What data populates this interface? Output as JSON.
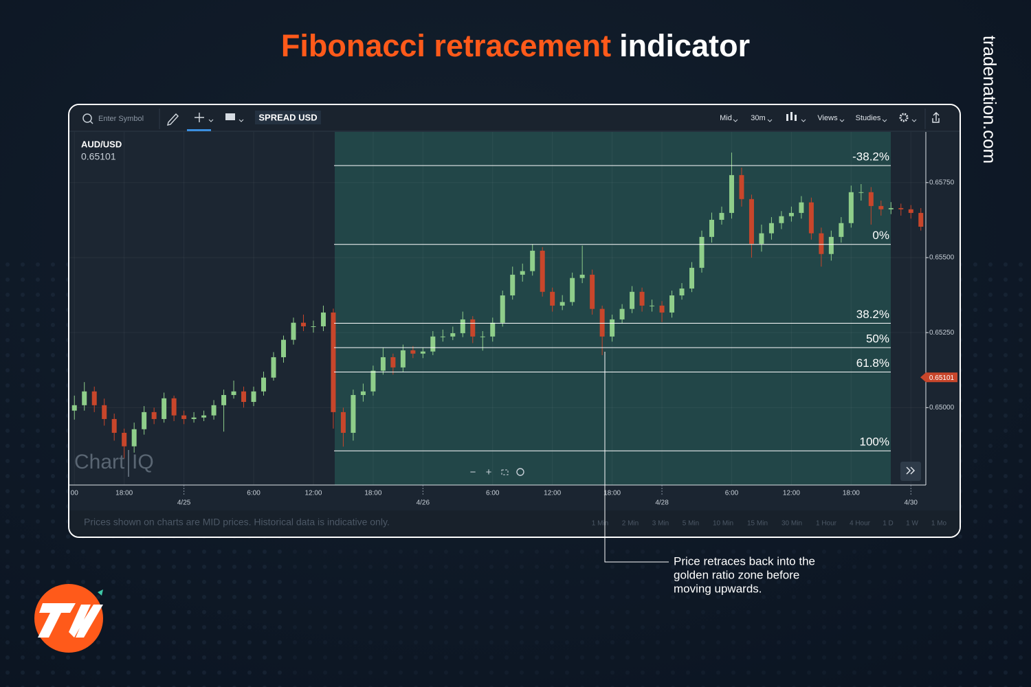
{
  "header": {
    "title_highlight": "Fibonacci retracement",
    "title_rest": "indicator",
    "brand": "tradenation.com"
  },
  "toolbar": {
    "search_placeholder": "Enter Symbol",
    "spread": "SPREAD USD",
    "menus": [
      "Mid",
      "30m",
      "Views",
      "Studies"
    ]
  },
  "symbol": "AUD/USD",
  "watermark": {
    "left": "Chart",
    "right": "IQ"
  },
  "annotation": [
    "Price retraces back into the",
    "golden ratio zone before",
    "moving upwards."
  ],
  "footer": {
    "note": "Prices shown on charts are MID prices. Historical data is indicative only.",
    "ranges": [
      "1 Min",
      "2 Min",
      "3 Min",
      "5 Min",
      "10 Min",
      "15 Min",
      "30 Min",
      "1 Hour",
      "4 Hour",
      "1 D",
      "1 W",
      "1 Mo"
    ]
  },
  "chart_data": {
    "type": "candlestick",
    "categories": [
      "00",
      null,
      null,
      null,
      null,
      "18:00",
      null,
      null,
      null,
      null,
      null,
      "4/25",
      null,
      null,
      null,
      null,
      null,
      null,
      "6:00",
      null,
      null,
      null,
      null,
      null,
      "12:00",
      null,
      null,
      null,
      null,
      null,
      "18:00",
      null,
      null,
      null,
      null,
      "4/26",
      null,
      null,
      null,
      null,
      null,
      null,
      "6:00",
      null,
      null,
      null,
      null,
      null,
      "12:00",
      null,
      null,
      null,
      null,
      null,
      "18:00",
      null,
      null,
      null,
      null,
      "4/28",
      null,
      null,
      null,
      null,
      null,
      null,
      "6:00",
      null,
      null,
      null,
      null,
      null,
      "12:00",
      null,
      null,
      null,
      null,
      null,
      "18:00",
      null,
      null,
      null,
      null,
      null,
      "4/30",
      null
    ],
    "open": [
      0.6499,
      0.65008,
      0.65054,
      0.65008,
      0.64962,
      0.64916,
      0.64871,
      0.64928,
      0.64985,
      0.64962,
      0.65031,
      0.64974,
      0.64962,
      0.64967,
      0.64974,
      0.65008,
      0.65042,
      0.65054,
      0.65019,
      0.65054,
      0.651,
      0.65168,
      0.65226,
      0.65283,
      0.65271,
      0.65271,
      0.65317,
      0.64985,
      0.64916,
      0.65042,
      0.65054,
      0.65123,
      0.65168,
      0.65134,
      0.65191,
      0.6518,
      0.65187,
      0.65237,
      0.65237,
      0.65248,
      0.65294,
      0.65237,
      0.65237,
      0.65283,
      0.65374,
      0.65443,
      0.65455,
      0.65523,
      0.65386,
      0.6534,
      0.65352,
      0.65432,
      0.65443,
      0.65329,
      0.65237,
      0.65294,
      0.65329,
      0.65386,
      0.6534,
      0.6534,
      0.65317,
      0.65374,
      0.65397,
      0.65466,
      0.65569,
      0.65626,
      0.65649,
      0.65775,
      0.65695,
      0.65546,
      0.65581,
      0.65615,
      0.65638,
      0.65649,
      0.65684,
      0.65581,
      0.65512,
      0.65569,
      0.65615,
      0.65718,
      0.65718,
      0.65672,
      0.65661,
      0.65665,
      0.65661,
      0.65649
    ],
    "high": [
      0.6504,
      0.65085,
      0.6507,
      0.6503,
      0.6498,
      0.6493,
      0.6495,
      0.65005,
      0.65,
      0.6505,
      0.6504,
      0.6499,
      0.64985,
      0.6499,
      0.65025,
      0.6506,
      0.6509,
      0.6507,
      0.6507,
      0.6512,
      0.65185,
      0.6524,
      0.653,
      0.6531,
      0.6529,
      0.6534,
      0.6533,
      0.65,
      0.6506,
      0.6508,
      0.6514,
      0.652,
      0.6518,
      0.6521,
      0.65205,
      0.652,
      0.65255,
      0.6526,
      0.6527,
      0.6532,
      0.65305,
      0.65255,
      0.653,
      0.6539,
      0.6547,
      0.6548,
      0.65545,
      0.65535,
      0.654,
      0.65375,
      0.6545,
      0.6554,
      0.6546,
      0.6534,
      0.6531,
      0.65345,
      0.65405,
      0.654,
      0.6536,
      0.65355,
      0.6539,
      0.65415,
      0.65485,
      0.6559,
      0.6565,
      0.6567,
      0.6585,
      0.658,
      0.6571,
      0.6561,
      0.65635,
      0.65655,
      0.6567,
      0.65705,
      0.657,
      0.656,
      0.6559,
      0.65635,
      0.6574,
      0.65745,
      0.65735,
      0.6569,
      0.65685,
      0.6568,
      0.65675,
      0.65665
    ],
    "low": [
      0.6496,
      0.6499,
      0.64985,
      0.6494,
      0.6489,
      0.6483,
      0.6485,
      0.6491,
      0.64945,
      0.6495,
      0.64955,
      0.64945,
      0.6495,
      0.64955,
      0.6496,
      0.6492,
      0.6503,
      0.65,
      0.65005,
      0.6504,
      0.6509,
      0.6515,
      0.6521,
      0.65255,
      0.6525,
      0.65255,
      0.6493,
      0.6487,
      0.6489,
      0.6502,
      0.6504,
      0.6511,
      0.6511,
      0.6512,
      0.65165,
      0.65165,
      0.65175,
      0.6522,
      0.65225,
      0.65235,
      0.65215,
      0.6519,
      0.6522,
      0.6527,
      0.6536,
      0.6542,
      0.6544,
      0.6537,
      0.6532,
      0.65325,
      0.6534,
      0.65415,
      0.6531,
      0.65175,
      0.6522,
      0.6528,
      0.65315,
      0.6532,
      0.6532,
      0.65285,
      0.653,
      0.6536,
      0.65385,
      0.6545,
      0.6555,
      0.6561,
      0.6563,
      0.6567,
      0.655,
      0.6552,
      0.6556,
      0.65595,
      0.6562,
      0.6563,
      0.6556,
      0.6547,
      0.6549,
      0.6555,
      0.656,
      0.6569,
      0.6561,
      0.6564,
      0.65645,
      0.6564,
      0.6563,
      0.6559
    ],
    "close": [
      0.65008,
      0.65054,
      0.65008,
      0.64962,
      0.64916,
      0.64871,
      0.64928,
      0.64985,
      0.64962,
      0.65031,
      0.64974,
      0.64962,
      0.64967,
      0.64974,
      0.65008,
      0.65042,
      0.65054,
      0.65019,
      0.65054,
      0.651,
      0.65168,
      0.65226,
      0.65283,
      0.65271,
      0.65271,
      0.65317,
      0.64985,
      0.64916,
      0.65042,
      0.65054,
      0.65123,
      0.65168,
      0.65134,
      0.65191,
      0.6518,
      0.65187,
      0.65237,
      0.65237,
      0.65248,
      0.65294,
      0.65237,
      0.65237,
      0.65283,
      0.65374,
      0.65443,
      0.65455,
      0.65523,
      0.65386,
      0.6534,
      0.65352,
      0.65432,
      0.65443,
      0.65329,
      0.65237,
      0.65294,
      0.65329,
      0.65386,
      0.6534,
      0.6534,
      0.65317,
      0.65374,
      0.65397,
      0.65466,
      0.65569,
      0.65626,
      0.65649,
      0.65775,
      0.65695,
      0.65546,
      0.65581,
      0.65615,
      0.65638,
      0.65649,
      0.65684,
      0.65581,
      0.65512,
      0.65569,
      0.65615,
      0.65718,
      0.65718,
      0.65672,
      0.65661,
      0.65665,
      0.65661,
      0.65649,
      0.65603
    ],
    "up_color": "#8fce8a",
    "down_color": "#c8462b",
    "ylim": [
      0.64742,
      0.65919
    ],
    "yticks": [
      {
        "value": 0.6575,
        "label": "0.65750"
      },
      {
        "value": 0.655,
        "label": "0.65500"
      },
      {
        "value": 0.6525,
        "label": "0.65250"
      },
      {
        "value": 0.65,
        "label": "0.65000"
      }
    ],
    "grid": true,
    "current_price": 0.65101,
    "fibonacci": {
      "high": 0.65544,
      "low": 0.64856,
      "color": "#ffffff",
      "levels": [
        {
          "value": -38.2,
          "label": "-38.2%"
        },
        {
          "value": 0,
          "label": "0%"
        },
        {
          "value": 38.2,
          "label": "38.2%"
        },
        {
          "value": 50,
          "label": "50%"
        },
        {
          "value": 61.8,
          "label": "61.8%"
        },
        {
          "value": 100,
          "label": "100%"
        }
      ]
    }
  }
}
